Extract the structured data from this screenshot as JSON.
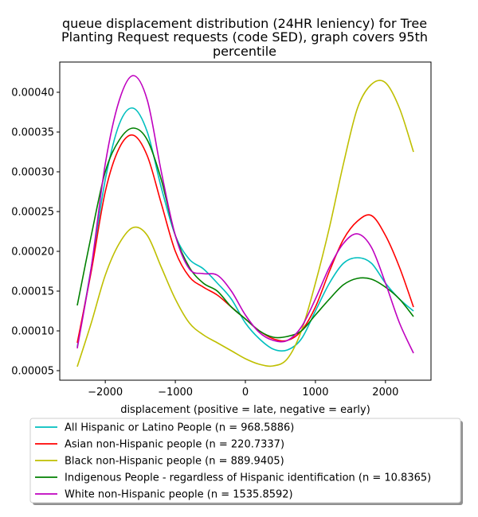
{
  "chart_data": {
    "type": "line",
    "title_lines": [
      "queue displacement distribution (24HR leniency) for Tree",
      "Planting Request  requests (code SED), graph covers 95th",
      "percentile"
    ],
    "xlabel": "displacement (positive = late, negative = early)",
    "ylabel": "",
    "xlim": [
      -2650,
      2650
    ],
    "ylim": [
      3.8e-05,
      0.000438
    ],
    "xticks": [
      -2000,
      -1000,
      0,
      1000,
      2000
    ],
    "xtick_labels": [
      "−2000",
      "−1000",
      "0",
      "1000",
      "2000"
    ],
    "yticks": [
      5e-05,
      0.0001,
      0.00015,
      0.0002,
      0.00025,
      0.0003,
      0.00035,
      0.0004
    ],
    "ytick_labels": [
      "0.00005",
      "0.00010",
      "0.00015",
      "0.00020",
      "0.00025",
      "0.00030",
      "0.00035",
      "0.00040"
    ],
    "grid": false,
    "legend_position": "below",
    "x": [
      -2400,
      -2200,
      -2000,
      -1800,
      -1600,
      -1400,
      -1200,
      -1000,
      -800,
      -600,
      -400,
      -200,
      0,
      200,
      400,
      600,
      800,
      1000,
      1200,
      1400,
      1600,
      1800,
      2000,
      2200,
      2400
    ],
    "series": [
      {
        "name": "All Hispanic or Latino People (n = 968.5886)",
        "color": "#00bfbf",
        "values": [
          8e-05,
          0.00018,
          0.00029,
          0.00036,
          0.00038,
          0.00035,
          0.00028,
          0.00022,
          0.00019,
          0.000178,
          0.00016,
          0.00014,
          0.00011,
          9e-05,
          7.7e-05,
          7.6e-05,
          9e-05,
          0.000125,
          0.00016,
          0.000185,
          0.000192,
          0.000185,
          0.00016,
          0.00014,
          0.000125
        ]
      },
      {
        "name": "Asian non-Hispanic people (n = 220.7337)",
        "color": "#ff0000",
        "values": [
          8.5e-05,
          0.000175,
          0.000275,
          0.00033,
          0.000346,
          0.00032,
          0.00026,
          0.0002,
          0.000168,
          0.000155,
          0.000145,
          0.00013,
          0.000115,
          0.0001,
          9e-05,
          8.8e-05,
          0.0001,
          0.00013,
          0.000175,
          0.000215,
          0.000238,
          0.000245,
          0.00022,
          0.00018,
          0.00013
        ]
      },
      {
        "name": "Black non-Hispanic people (n = 889.9405)",
        "color": "#bfbf00",
        "values": [
          5.5e-05,
          0.00011,
          0.00017,
          0.00021,
          0.00023,
          0.00022,
          0.00018,
          0.00014,
          0.00011,
          9.5e-05,
          8.5e-05,
          7.5e-05,
          6.5e-05,
          5.8e-05,
          5.6e-05,
          6.5e-05,
          0.0001,
          0.00016,
          0.00023,
          0.00031,
          0.00038,
          0.00041,
          0.000412,
          0.00038,
          0.000325
        ]
      },
      {
        "name": "Indigenous People - regardless of Hispanic identification (n = 10.8365)",
        "color": "#008000",
        "values": [
          0.000132,
          0.00022,
          0.0003,
          0.00034,
          0.000355,
          0.00034,
          0.00029,
          0.00022,
          0.00018,
          0.00016,
          0.00015,
          0.00013,
          0.000115,
          0.0001,
          9.2e-05,
          9.3e-05,
          0.0001,
          0.00012,
          0.00014,
          0.000158,
          0.000166,
          0.000165,
          0.000155,
          0.00014,
          0.000118
        ]
      },
      {
        "name": "White non-Hispanic people (n = 1535.8592)",
        "color": "#bf00bf",
        "values": [
          7.8e-05,
          0.00018,
          0.00031,
          0.00039,
          0.000421,
          0.00039,
          0.0003,
          0.00022,
          0.000178,
          0.000172,
          0.00017,
          0.00015,
          0.00012,
          9.8e-05,
          8.8e-05,
          8.8e-05,
          0.000105,
          0.00014,
          0.00018,
          0.00021,
          0.000222,
          0.000205,
          0.00016,
          0.00011,
          7.2e-05
        ]
      }
    ]
  }
}
